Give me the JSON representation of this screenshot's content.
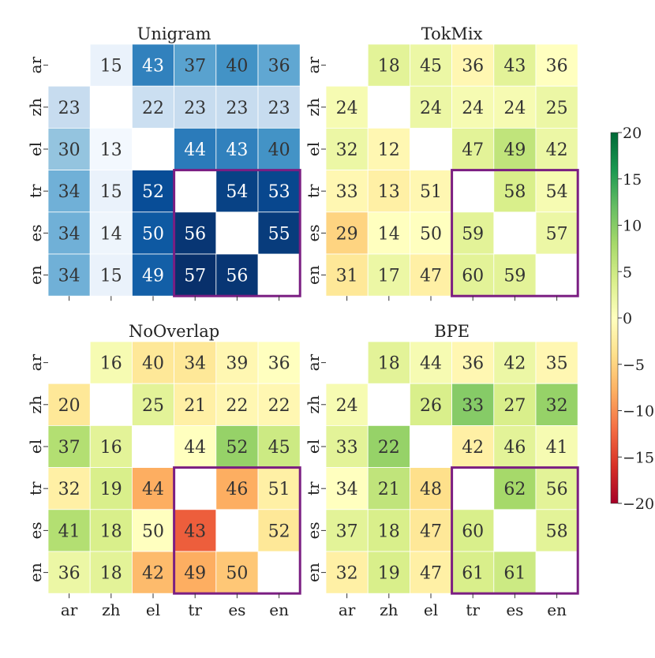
{
  "chart_data": [
    {
      "type": "heatmap",
      "title": "Unigram",
      "languages": [
        "ar",
        "zh",
        "el",
        "tr",
        "es",
        "en"
      ],
      "colormap": "blues",
      "values": [
        [
          null,
          15,
          43,
          37,
          40,
          36
        ],
        [
          23,
          null,
          22,
          23,
          23,
          23
        ],
        [
          30,
          13,
          null,
          44,
          43,
          40
        ],
        [
          34,
          15,
          52,
          null,
          54,
          53
        ],
        [
          34,
          14,
          50,
          56,
          null,
          55
        ],
        [
          34,
          15,
          49,
          57,
          56,
          null
        ]
      ],
      "highlight_block": {
        "rows": [
          "tr",
          "es",
          "en"
        ],
        "cols": [
          "tr",
          "es",
          "en"
        ],
        "color": "#7b1e82"
      }
    },
    {
      "type": "heatmap",
      "title": "TokMix",
      "languages": [
        "ar",
        "zh",
        "el",
        "tr",
        "es",
        "en"
      ],
      "colormap": "diverging-difference-vs-unigram",
      "values": [
        [
          null,
          18,
          45,
          36,
          43,
          36
        ],
        [
          24,
          null,
          24,
          24,
          24,
          25
        ],
        [
          32,
          12,
          null,
          47,
          49,
          42
        ],
        [
          33,
          13,
          51,
          null,
          58,
          54
        ],
        [
          29,
          14,
          50,
          59,
          null,
          57
        ],
        [
          31,
          17,
          47,
          60,
          59,
          null
        ]
      ],
      "highlight_block": {
        "rows": [
          "tr",
          "es",
          "en"
        ],
        "cols": [
          "tr",
          "es",
          "en"
        ],
        "color": "#7b1e82"
      }
    },
    {
      "type": "heatmap",
      "title": "NoOverlap",
      "languages": [
        "ar",
        "zh",
        "el",
        "tr",
        "es",
        "en"
      ],
      "colormap": "diverging-difference-vs-unigram",
      "values": [
        [
          null,
          16,
          40,
          34,
          39,
          36
        ],
        [
          20,
          null,
          25,
          21,
          22,
          22
        ],
        [
          37,
          16,
          null,
          44,
          52,
          45
        ],
        [
          32,
          19,
          44,
          null,
          46,
          51
        ],
        [
          41,
          18,
          50,
          43,
          null,
          52
        ],
        [
          36,
          18,
          42,
          49,
          50,
          null
        ]
      ],
      "highlight_block": {
        "rows": [
          "tr",
          "es",
          "en"
        ],
        "cols": [
          "tr",
          "es",
          "en"
        ],
        "color": "#7b1e82"
      }
    },
    {
      "type": "heatmap",
      "title": "BPE",
      "languages": [
        "ar",
        "zh",
        "el",
        "tr",
        "es",
        "en"
      ],
      "colormap": "diverging-difference-vs-unigram",
      "values": [
        [
          null,
          18,
          44,
          36,
          42,
          35
        ],
        [
          24,
          null,
          26,
          33,
          27,
          32
        ],
        [
          33,
          22,
          null,
          42,
          46,
          41
        ],
        [
          34,
          21,
          48,
          null,
          62,
          56
        ],
        [
          37,
          18,
          47,
          60,
          null,
          58
        ],
        [
          32,
          19,
          47,
          61,
          61,
          null
        ]
      ],
      "highlight_block": {
        "rows": [
          "tr",
          "es",
          "en"
        ],
        "cols": [
          "tr",
          "es",
          "en"
        ],
        "color": "#7b1e82"
      }
    }
  ],
  "colorbar": {
    "range": [
      -20,
      20
    ],
    "ticks": [
      "20",
      "15",
      "10",
      "5",
      "0",
      "−5",
      "−10",
      "−15",
      "−20"
    ],
    "tick_values": [
      20,
      15,
      10,
      5,
      0,
      -5,
      -10,
      -15,
      -20
    ],
    "colors": [
      "#a50026",
      "#d73027",
      "#f46d43",
      "#fdae61",
      "#fee08b",
      "#ffffbf",
      "#d9ef8b",
      "#a6d96a",
      "#66bd63",
      "#1a9850",
      "#006837"
    ]
  },
  "blues_colors": [
    "#f7fbff",
    "#deebf7",
    "#c6dbef",
    "#9ecae1",
    "#6baed6",
    "#4292c6",
    "#2171b5",
    "#08519c",
    "#08306b"
  ],
  "blues_range": [
    12,
    57
  ]
}
